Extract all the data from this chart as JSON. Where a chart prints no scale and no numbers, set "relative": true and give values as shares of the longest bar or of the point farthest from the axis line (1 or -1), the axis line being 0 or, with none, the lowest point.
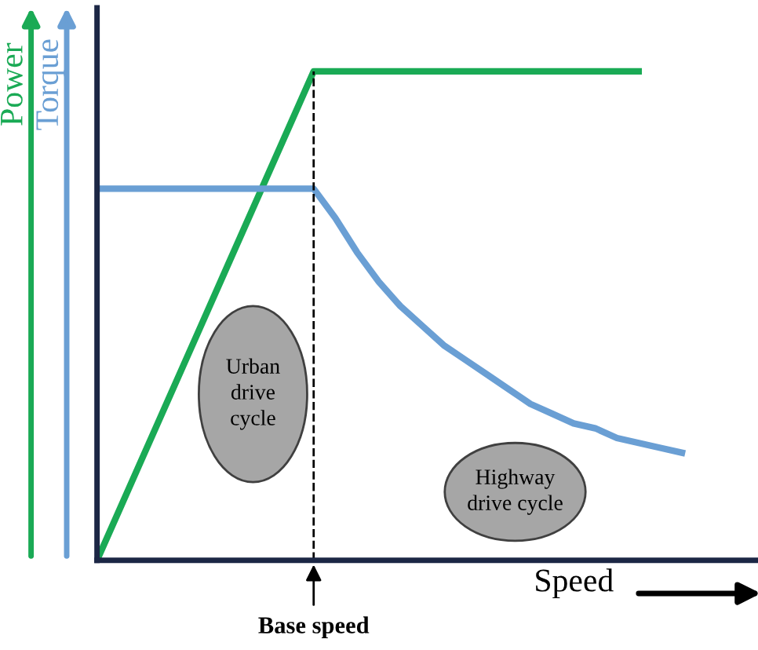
{
  "chart_data": {
    "type": "line",
    "relative": true,
    "xlabel": "Speed",
    "categories": [
      null,
      null,
      null,
      null,
      null,
      null,
      null,
      null,
      null,
      null,
      null,
      null,
      null,
      null,
      null,
      null,
      null,
      null,
      null,
      null,
      null,
      null,
      null,
      null,
      null,
      null,
      null,
      null
    ],
    "series": [
      {
        "name": "Power",
        "color": "#1aaa55",
        "values": [
          0,
          0.1,
          0.2,
          0.3,
          0.4,
          0.5,
          0.6,
          0.7,
          0.8,
          0.9,
          1,
          1,
          1,
          1,
          1,
          1,
          1,
          1,
          1,
          1,
          1,
          1,
          1,
          1,
          1,
          1,
          null,
          null
        ]
      },
      {
        "name": "Torque",
        "color": "#6a9fd4",
        "values": [
          0.76,
          0.76,
          0.76,
          0.76,
          0.76,
          0.76,
          0.76,
          0.76,
          0.76,
          0.76,
          0.76,
          0.7,
          0.63,
          0.57,
          0.52,
          0.48,
          0.44,
          0.41,
          0.38,
          0.35,
          0.32,
          0.3,
          0.28,
          0.27,
          0.25,
          0.24,
          0.23,
          0.22
        ]
      }
    ],
    "annotations": [
      "Base speed",
      "Urban\ndrive\ncycle",
      "Highway\ndrive cycle"
    ],
    "grid": false,
    "legend": "left",
    "marker": "none",
    "line_style": "solid"
  }
}
